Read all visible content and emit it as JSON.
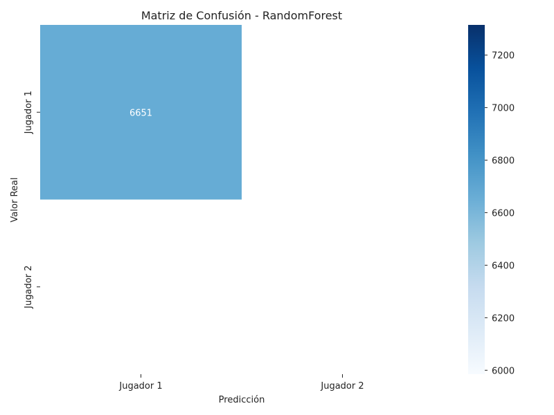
{
  "chart_data": {
    "type": "heatmap",
    "title": "Matriz de Confusión - RandomForest",
    "xlabel": "Predicción",
    "ylabel": "Valor Real",
    "x_categories": [
      "Jugador 1",
      "Jugador 2"
    ],
    "y_categories": [
      "Jugador 1",
      "Jugador 2"
    ],
    "cells": [
      {
        "row": 0,
        "col": 0,
        "value": 6651,
        "label": "6651"
      }
    ],
    "colorbar": {
      "colormap": "Blues",
      "min": 5985,
      "max": 7315,
      "ticks": [
        6000,
        6200,
        6400,
        6600,
        6800,
        7000,
        7200
      ],
      "tick_labels": [
        "6000",
        "6200",
        "6400",
        "6600",
        "6800",
        "7000",
        "7200"
      ]
    },
    "cell_colors": {
      "Jugador 1|Jugador 1": "#66acd5"
    }
  }
}
